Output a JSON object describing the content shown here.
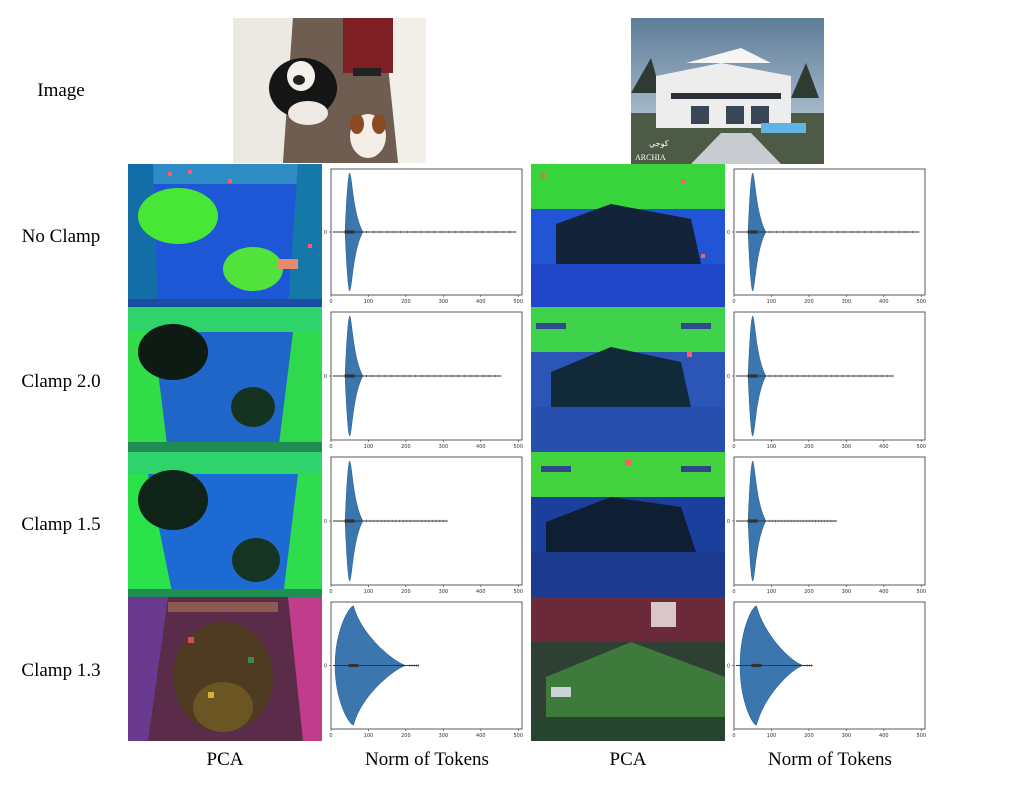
{
  "row_labels": {
    "image": "Image",
    "no_clamp": "No Clamp",
    "clamp_2_0": "Clamp 2.0",
    "clamp_1_5": "Clamp 1.5",
    "clamp_1_3": "Clamp 1.3"
  },
  "column_labels": {
    "pca_1": "PCA",
    "norm_1": "Norm of Tokens",
    "pca_2": "PCA",
    "norm_2": "Norm of Tokens"
  },
  "photo_text": {
    "logo_line1": "كوجي",
    "logo_line2": "ARCHIA"
  },
  "chart_data": [
    {
      "type": "violin",
      "panel": "dog / No Clamp",
      "x_ticks": [
        0,
        100,
        200,
        300,
        400,
        500
      ],
      "y_tick": "0",
      "xlim": [
        0,
        510
      ],
      "median": 50,
      "body_max": 85,
      "outliers_max": 495
    },
    {
      "type": "violin",
      "panel": "house / No Clamp",
      "x_ticks": [
        0,
        100,
        200,
        300,
        400,
        500
      ],
      "y_tick": "0",
      "xlim": [
        0,
        510
      ],
      "median": 50,
      "body_max": 85,
      "outliers_max": 495
    },
    {
      "type": "violin",
      "panel": "dog / Clamp 2.0",
      "x_ticks": [
        0,
        100,
        200,
        300,
        400,
        500
      ],
      "y_tick": "0",
      "xlim": [
        0,
        510
      ],
      "median": 50,
      "body_max": 85,
      "outliers_max": 455
    },
    {
      "type": "violin",
      "panel": "house / Clamp 2.0",
      "x_ticks": [
        0,
        100,
        200,
        300,
        400,
        500
      ],
      "y_tick": "0",
      "xlim": [
        0,
        510
      ],
      "median": 50,
      "body_max": 85,
      "outliers_max": 425
    },
    {
      "type": "violin",
      "panel": "dog / Clamp 1.5",
      "x_ticks": [
        0,
        100,
        200,
        300,
        400,
        500
      ],
      "y_tick": "0",
      "xlim": [
        0,
        510
      ],
      "median": 50,
      "body_max": 85,
      "outliers_max": 310
    },
    {
      "type": "violin",
      "panel": "house / Clamp 1.5",
      "x_ticks": [
        0,
        100,
        200,
        300,
        400,
        500
      ],
      "y_tick": "0",
      "xlim": [
        0,
        510
      ],
      "median": 50,
      "body_max": 85,
      "outliers_max": 275
    },
    {
      "type": "violin",
      "panel": "dog / Clamp 1.3",
      "x_ticks": [
        0,
        100,
        200,
        300,
        400,
        500
      ],
      "y_tick": "0",
      "xlim": [
        0,
        510
      ],
      "median": 60,
      "body_max": 200,
      "outliers_max": 235
    },
    {
      "type": "violin",
      "panel": "house / Clamp 1.3",
      "x_ticks": [
        0,
        100,
        200,
        300,
        400,
        500
      ],
      "y_tick": "0",
      "xlim": [
        0,
        510
      ],
      "median": 60,
      "body_max": 185,
      "outliers_max": 210
    }
  ]
}
